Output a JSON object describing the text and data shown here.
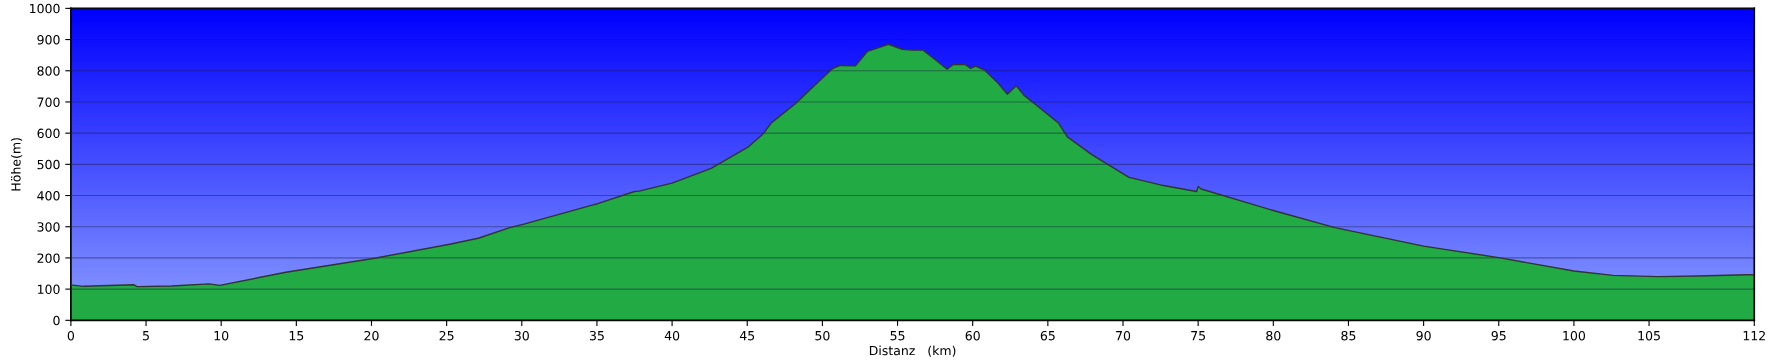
{
  "chart_data": {
    "type": "area",
    "xlabel": "Distanz   (km)",
    "ylabel": "Höhe(m)",
    "x": [
      0,
      0.1,
      0.85,
      4.2,
      4.4,
      6.7,
      9.2,
      9.9,
      14.3,
      20.2,
      25.2,
      27.1,
      29.2,
      30.2,
      34.8,
      35,
      37.5,
      37.8,
      40,
      42.6,
      45.1,
      46.1,
      46.6,
      48.2,
      49.7,
      50.7,
      51.2,
      52.2,
      53,
      53.8,
      54.4,
      55.3,
      56,
      56.7,
      57.6,
      58.3,
      58.7,
      59.5,
      59.85,
      60.2,
      60.8,
      61.7,
      62.3,
      62.9,
      63.4,
      64.2,
      65.7,
      66.3,
      67.9,
      70.4,
      72.7,
      74.9,
      75,
      75.2,
      80,
      84.1,
      90,
      95,
      100,
      102.6,
      105.6,
      108.2,
      111.5,
      112
    ],
    "series": [
      {
        "color": "#22aa44",
        "values": [
          113,
          113,
          109,
          114,
          108,
          110,
          117,
          112,
          154,
          199,
          244,
          263,
          297,
          309,
          371,
          373,
          413,
          414,
          440,
          487,
          557,
          600,
          633,
          694,
          763,
          808,
          817,
          816,
          862,
          875,
          885,
          869,
          866,
          866,
          832,
          805,
          820,
          820,
          808,
          815,
          802,
          760,
          725,
          752,
          722,
          691,
          633,
          588,
          532,
          458,
          432,
          413,
          429,
          421,
          352,
          297,
          238,
          201,
          158,
          144,
          140,
          142,
          146,
          146
        ]
      }
    ],
    "xlim": [
      0,
      112
    ],
    "xticks": [
      0,
      5,
      10,
      15,
      20,
      25,
      30,
      35,
      40,
      45,
      50,
      55,
      60,
      65,
      70,
      75,
      80,
      85,
      90,
      95,
      100,
      105,
      112
    ],
    "ylim": [
      0,
      1000
    ],
    "yticks": [
      0,
      100,
      200,
      300,
      400,
      500,
      600,
      700,
      800,
      900,
      1000
    ],
    "grid": "y"
  }
}
